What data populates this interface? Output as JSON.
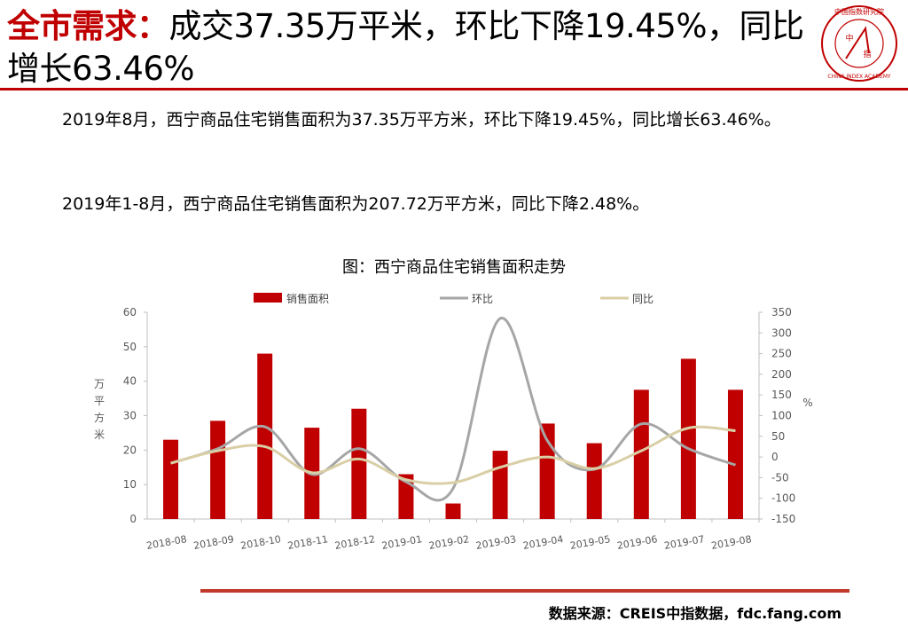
{
  "header": {
    "title_lead": "全市需求：",
    "title_rest": "成交37.35万平米，环比下降19.45%，同比增长63.46%"
  },
  "logo": {
    "text_top": "中国指数研究院",
    "text_center": "中",
    "text_center2": "指",
    "text_bottom": "CHINA INDEX ACADEMY"
  },
  "body": {
    "paragraph1": "2019年8月，西宁商品住宅销售面积为37.35万平方米，环比下降19.45%，同比增长63.46%。",
    "paragraph2": "2019年1-8月，西宁商品住宅销售面积为207.72万平方米，同比下降2.48%。"
  },
  "footer": {
    "source": "数据来源：CREIS中指数据，fdc.fang.com"
  },
  "colors": {
    "brand_red": "#c00000",
    "bar": "#c00000",
    "mom_line": "#a6a6a6",
    "yoy_line": "#d9cfa6",
    "footer_rule": "#c0392b"
  },
  "chart_data": {
    "type": "bar",
    "title": "图：西宁商品住宅销售面积走势",
    "categories": [
      "2018-08",
      "2018-09",
      "2018-10",
      "2018-11",
      "2018-12",
      "2019-01",
      "2019-02",
      "2019-03",
      "2019-04",
      "2019-05",
      "2019-06",
      "2019-07",
      "2019-08"
    ],
    "series": [
      {
        "name": "销售面积",
        "type": "bar",
        "axis": "left",
        "values": [
          23,
          28.5,
          48,
          26.5,
          32,
          13,
          4.5,
          19.8,
          27.7,
          22,
          37.5,
          46.5,
          37.5
        ]
      },
      {
        "name": "环比",
        "type": "line",
        "axis": "right",
        "values": [
          -15,
          20,
          73,
          -42,
          20,
          -60,
          -76,
          335,
          40,
          -30,
          80,
          20,
          -19.45
        ]
      },
      {
        "name": "同比",
        "type": "line",
        "axis": "right",
        "values": [
          -15,
          15,
          25,
          -38,
          -5,
          -55,
          -62,
          -25,
          0,
          -28,
          15,
          70,
          63.46
        ]
      }
    ],
    "ylabel": "万平方米",
    "ylim": [
      0,
      60
    ],
    "yticks": [
      0,
      10,
      20,
      30,
      40,
      50,
      60
    ],
    "y2label": "%",
    "y2lim": [
      -150,
      350
    ],
    "y2ticks": [
      -150,
      -100,
      -50,
      0,
      50,
      100,
      150,
      200,
      250,
      300,
      350
    ],
    "legend_position": "top",
    "grid": false
  }
}
